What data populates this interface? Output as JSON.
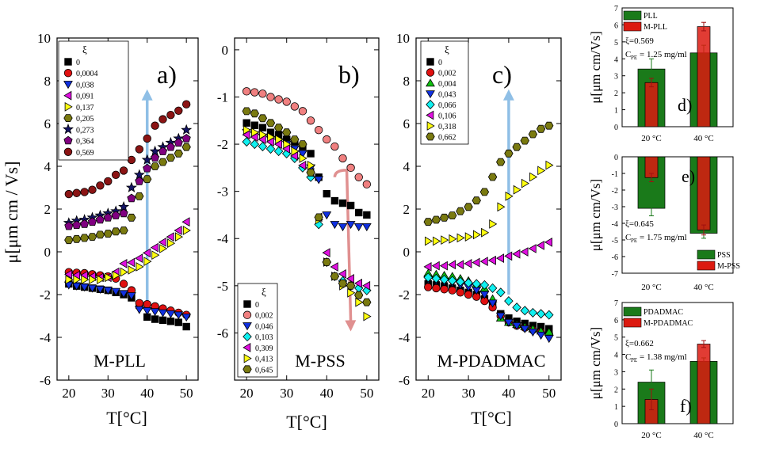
{
  "colors": {
    "black": "#000000",
    "red": "#e01010",
    "blue": "#1030e0",
    "magenta": "#e010e0",
    "yellow": "#ffff10",
    "olive": "#7a7a10",
    "navy": "#141466",
    "purple": "#800080",
    "darkred": "#8b1414",
    "salmon": "#f08080",
    "green": "#10c010",
    "cyan": "#10f0f0",
    "arrowBlue": "#8fbfe6",
    "arrowPink": "#e09090",
    "barGreen": "#1a7a1a",
    "barRed": "#dc1a10"
  },
  "left_panels": {
    "ylabel": "μ[μm cm / Vs]",
    "xlabel": "T[°C]"
  },
  "chart_data": [
    {
      "type": "scatter",
      "panel_label": "a)",
      "name": "M-PLL",
      "legend_title": "ξ",
      "xlim": [
        17,
        53
      ],
      "ylim": [
        -6,
        10
      ],
      "xticks": [
        20,
        30,
        40,
        50
      ],
      "yticks": [
        -6,
        -4,
        -2,
        0,
        2,
        4,
        6,
        8,
        10
      ],
      "ytick_labels": [
        "-6",
        "-4",
        "-2",
        "0",
        "2",
        "4",
        "6",
        "8",
        "10"
      ],
      "xtick_labels": [
        "20",
        "30",
        "40",
        "50"
      ],
      "arrow": {
        "x_from": 40,
        "y_from": -2.4,
        "x_to": 40,
        "y_to": 7.6
      },
      "series": [
        {
          "name": "0",
          "marker": "square",
          "color": "black",
          "y": [
            -1.5,
            -1.6,
            -1.65,
            -1.7,
            -1.75,
            -1.8,
            -1.9,
            -2.0,
            -2.15,
            -2.5,
            -3.05,
            -3.15,
            -3.2,
            -3.25,
            -3.3,
            -3.5
          ]
        },
        {
          "name": "0,0004",
          "marker": "circle",
          "color": "red",
          "y": [
            -0.95,
            -0.98,
            -1.0,
            -1.05,
            -1.1,
            -1.15,
            -1.25,
            -1.5,
            -1.8,
            -2.4,
            -2.45,
            -2.55,
            -2.65,
            -2.75,
            -2.85,
            -2.95
          ]
        },
        {
          "name": "0,038",
          "marker": "tri-down",
          "color": "blue",
          "y": [
            -1.55,
            -1.6,
            -1.65,
            -1.7,
            -1.75,
            -1.8,
            -1.85,
            -1.95,
            -2.05,
            -2.7,
            -2.75,
            -2.8,
            -2.85,
            -2.9,
            -2.95,
            -3.05
          ]
        },
        {
          "name": "0,091",
          "marker": "tri-left",
          "color": "magenta",
          "y": [
            -1.05,
            -1.1,
            -1.1,
            -1.15,
            -1.2,
            -1.2,
            -0.95,
            -0.55,
            -0.5,
            -0.3,
            -0.05,
            0.2,
            0.45,
            0.7,
            1.0,
            1.4
          ]
        },
        {
          "name": "0,137",
          "marker": "tri-right",
          "color": "yellow",
          "y": [
            -1.3,
            -1.3,
            -1.3,
            -1.3,
            -1.3,
            -1.2,
            -1.1,
            -0.95,
            -0.85,
            -0.7,
            -0.45,
            -0.15,
            0.15,
            0.4,
            0.7,
            1.0
          ]
        },
        {
          "name": "0,205",
          "marker": "hexagon",
          "color": "olive",
          "y": [
            0.55,
            0.6,
            0.65,
            0.7,
            0.8,
            0.85,
            0.95,
            1.0,
            1.6,
            2.6,
            3.4,
            4.0,
            4.2,
            4.4,
            4.6,
            4.9
          ]
        },
        {
          "name": "0,273",
          "marker": "star",
          "color": "navy",
          "y": [
            1.35,
            1.45,
            1.5,
            1.6,
            1.7,
            1.8,
            1.9,
            2.1,
            3.0,
            3.6,
            4.3,
            4.7,
            4.9,
            5.1,
            5.3,
            5.7
          ]
        },
        {
          "name": "0,364",
          "marker": "pentagon",
          "color": "purple",
          "y": [
            1.2,
            1.25,
            1.3,
            1.4,
            1.5,
            1.6,
            1.7,
            1.8,
            2.5,
            3.3,
            3.9,
            4.4,
            4.7,
            4.9,
            5.1,
            5.3
          ]
        },
        {
          "name": "0,569",
          "marker": "circle",
          "color": "darkred",
          "y": [
            2.7,
            2.75,
            2.8,
            2.9,
            3.1,
            3.3,
            3.6,
            3.8,
            4.3,
            4.8,
            5.3,
            5.9,
            6.2,
            6.4,
            6.6,
            6.9
          ]
        }
      ]
    },
    {
      "type": "scatter",
      "panel_label": "b)",
      "name": "M-PSS",
      "legend_title": "ξ",
      "xlim": [
        17,
        53
      ],
      "ylim": [
        -7,
        0.25
      ],
      "xticks": [
        20,
        30,
        40,
        50
      ],
      "yticks": [
        -6,
        -5,
        -4,
        -3,
        -2,
        -1,
        0
      ],
      "ytick_labels": [
        "-6",
        "-5",
        "-4",
        "-3",
        "-2",
        "-1",
        "0"
      ],
      "xtick_labels": [
        "20",
        "30",
        "40",
        "50"
      ],
      "arrow": {
        "x_from": 42,
        "y_from": -2.7,
        "x_to": 46,
        "y_to": -5.9
      },
      "series": [
        {
          "name": "0",
          "marker": "square",
          "color": "black",
          "y": [
            -1.55,
            -1.6,
            -1.65,
            -1.75,
            -1.8,
            -1.9,
            -1.95,
            -2.05,
            -2.2,
            -2.7,
            -3.05,
            -3.2,
            -3.25,
            -3.3,
            -3.45,
            -3.5
          ]
        },
        {
          "name": "0,002",
          "marker": "circle",
          "color": "salmon",
          "y": [
            -0.88,
            -0.9,
            -0.93,
            -1.0,
            -1.05,
            -1.1,
            -1.2,
            -1.3,
            -1.5,
            -1.7,
            -1.9,
            -2.05,
            -2.3,
            -2.5,
            -2.7,
            -2.85
          ]
        },
        {
          "name": "0,046",
          "marker": "tri-down",
          "color": "blue",
          "y": [
            -1.75,
            -1.8,
            -1.85,
            -1.9,
            -1.95,
            -2.0,
            -2.1,
            -2.2,
            -2.5,
            -2.75,
            -3.5,
            -3.7,
            -3.75,
            -3.7,
            -3.75,
            -3.75
          ]
        },
        {
          "name": "0,103",
          "marker": "diamond",
          "color": "cyan",
          "y": [
            -1.95,
            -2.0,
            -2.05,
            -2.1,
            -2.15,
            -2.2,
            -2.3,
            -2.5,
            -2.7,
            -3.7,
            -4.5,
            -4.8,
            -4.9,
            -5.0,
            -5.05,
            -5.1
          ]
        },
        {
          "name": "0,309",
          "marker": "tri-left",
          "color": "magenta",
          "y": [
            -1.8,
            -1.85,
            -1.9,
            -1.95,
            -2.0,
            -2.1,
            -2.25,
            -2.45,
            -2.6,
            -3.55,
            -4.3,
            -4.6,
            -4.75,
            -4.85,
            -4.95,
            -5.0
          ]
        },
        {
          "name": "0,413",
          "marker": "tri-right",
          "color": "yellow",
          "y": [
            -1.7,
            -1.75,
            -1.8,
            -1.85,
            -1.9,
            -2.0,
            -2.15,
            -2.3,
            -2.45,
            -3.6,
            -4.5,
            -4.8,
            -5.0,
            -5.15,
            -5.35,
            -5.65
          ]
        },
        {
          "name": "0,645",
          "marker": "hexagon",
          "color": "olive",
          "y": [
            -1.3,
            -1.35,
            -1.45,
            -1.55,
            -1.65,
            -1.75,
            -1.9,
            -2.0,
            -2.6,
            -3.55,
            -4.5,
            -4.8,
            -4.95,
            -5.0,
            -5.2,
            -5.35
          ]
        }
      ]
    },
    {
      "type": "scatter",
      "panel_label": "c)",
      "name": "M-PDADMAC",
      "legend_title": "ξ",
      "xlim": [
        17,
        53
      ],
      "ylim": [
        -6,
        10
      ],
      "xticks": [
        20,
        30,
        40,
        50
      ],
      "yticks": [
        -6,
        -4,
        -2,
        0,
        2,
        4,
        6,
        8,
        10
      ],
      "ytick_labels": [
        "-6",
        "-4",
        "-2",
        "0",
        "2",
        "4",
        "6",
        "8",
        "10"
      ],
      "xtick_labels": [
        "20",
        "30",
        "40",
        "50"
      ],
      "arrow": {
        "x_from": 40,
        "y_from": -2.0,
        "x_to": 40,
        "y_to": 7.6
      },
      "series": [
        {
          "name": "0",
          "marker": "square",
          "color": "black",
          "y": [
            -1.5,
            -1.55,
            -1.6,
            -1.7,
            -1.8,
            -1.9,
            -2.0,
            -2.2,
            -2.5,
            -2.9,
            -3.1,
            -3.25,
            -3.35,
            -3.45,
            -3.5,
            -3.6
          ]
        },
        {
          "name": "0,002",
          "marker": "circle",
          "color": "red",
          "y": [
            -1.65,
            -1.7,
            -1.75,
            -1.8,
            -1.9,
            -2.0,
            -2.1,
            -2.3,
            -2.6,
            -3.0,
            -3.3,
            -3.45,
            -3.55,
            -3.65,
            -3.75,
            -3.85
          ]
        },
        {
          "name": "0,004",
          "marker": "tri-up",
          "color": "green",
          "y": [
            -1.0,
            -1.05,
            -1.1,
            -1.15,
            -1.25,
            -1.35,
            -1.5,
            -1.7,
            -2.2,
            -3.1,
            -3.3,
            -3.4,
            -3.5,
            -3.6,
            -3.7,
            -3.75
          ]
        },
        {
          "name": "0,043",
          "marker": "tri-down",
          "color": "blue",
          "y": [
            -1.3,
            -1.35,
            -1.4,
            -1.45,
            -1.55,
            -1.65,
            -1.8,
            -2.0,
            -2.4,
            -3.0,
            -3.3,
            -3.45,
            -3.6,
            -3.75,
            -3.9,
            -4.05
          ]
        },
        {
          "name": "0,066",
          "marker": "diamond",
          "color": "cyan",
          "y": [
            -1.2,
            -1.25,
            -1.3,
            -1.35,
            -1.4,
            -1.45,
            -1.5,
            -1.55,
            -1.7,
            -1.9,
            -2.3,
            -2.6,
            -2.75,
            -2.85,
            -2.9,
            -2.95
          ]
        },
        {
          "name": "0,106",
          "marker": "tri-left",
          "color": "magenta",
          "y": [
            -0.7,
            -0.65,
            -0.65,
            -0.6,
            -0.6,
            -0.55,
            -0.5,
            -0.45,
            -0.4,
            -0.3,
            -0.2,
            -0.1,
            0.0,
            0.15,
            0.3,
            0.45
          ]
        },
        {
          "name": "0,318",
          "marker": "tri-right",
          "color": "yellow",
          "y": [
            0.5,
            0.5,
            0.55,
            0.6,
            0.65,
            0.7,
            0.8,
            0.9,
            1.3,
            2.1,
            2.6,
            2.9,
            3.2,
            3.5,
            3.8,
            4.05
          ]
        },
        {
          "name": "0,662",
          "marker": "hexagon",
          "color": "olive",
          "y": [
            1.4,
            1.5,
            1.6,
            1.7,
            1.9,
            2.1,
            2.4,
            2.8,
            3.5,
            4.2,
            4.6,
            4.9,
            5.2,
            5.5,
            5.75,
            5.9
          ]
        }
      ]
    },
    {
      "type": "bar",
      "panel_label": "d)",
      "categories": [
        "20 °C",
        "40 °C"
      ],
      "ylabel": "μ[μm cm/Vs]",
      "ylim": [
        0,
        7
      ],
      "yticks": [
        0,
        1,
        2,
        3,
        4,
        5,
        6,
        7
      ],
      "ytick_labels": [
        "0",
        "1",
        "2",
        "3",
        "4",
        "5",
        "6",
        "7"
      ],
      "annotation_lines": [
        "ξ=0.569",
        "C",
        "PE",
        "= 1.25 mg/ml"
      ],
      "series": [
        {
          "name": "PLL",
          "color": "barGreen",
          "values": [
            3.4,
            4.35
          ],
          "errors": [
            0.6,
            0.45
          ]
        },
        {
          "name": "M-PLL",
          "color": "barRed",
          "values": [
            2.6,
            5.9
          ],
          "errors": [
            0.25,
            0.25
          ]
        }
      ]
    },
    {
      "type": "bar",
      "panel_label": "e)",
      "categories": [
        "20 °C",
        "40 °C"
      ],
      "ylabel": "μ[μm cm/Vs]",
      "ylim": [
        -7,
        0
      ],
      "yticks": [
        0,
        -1,
        -2,
        -3,
        -4,
        -5,
        -6,
        -7
      ],
      "ytick_labels": [
        "0",
        "-1",
        "-2",
        "-3",
        "-4",
        "-5",
        "-6",
        "-7"
      ],
      "annotation_lines": [
        "ξ=0.645",
        "C",
        "PE",
        "= 1.75 mg/ml"
      ],
      "series": [
        {
          "name": "PSS",
          "color": "barGreen",
          "values": [
            -3.1,
            -4.6
          ],
          "errors": [
            0.45,
            0.3
          ]
        },
        {
          "name": "M-PSS",
          "color": "barRed",
          "values": [
            -1.25,
            -4.4
          ],
          "errors": [
            0.25,
            0.3
          ]
        }
      ]
    },
    {
      "type": "bar",
      "panel_label": "f)",
      "categories": [
        "20 °C",
        "40 °C"
      ],
      "ylabel": "μ[μm cm/Vs]",
      "ylim": [
        0,
        7
      ],
      "yticks": [
        0,
        1,
        2,
        3,
        4,
        5,
        6,
        7
      ],
      "ytick_labels": [
        "0",
        "1",
        "2",
        "3",
        "4",
        "5",
        "6",
        "7"
      ],
      "annotation_lines": [
        "ξ=0.662",
        "C",
        "PE",
        "= 1.38 mg/ml"
      ],
      "series": [
        {
          "name": "PDADMAC",
          "color": "barGreen",
          "values": [
            2.4,
            3.6
          ],
          "errors": [
            0.7,
            0.2
          ]
        },
        {
          "name": "M-PDADMAC",
          "color": "barRed",
          "values": [
            1.4,
            4.6
          ],
          "errors": [
            0.6,
            0.2
          ]
        }
      ]
    }
  ]
}
